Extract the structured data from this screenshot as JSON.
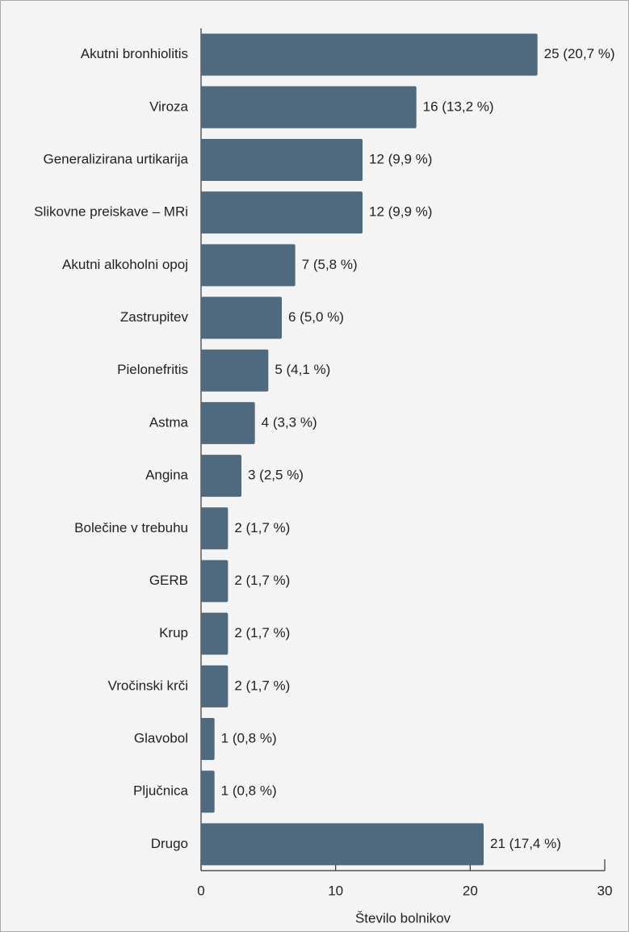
{
  "chart_data": {
    "type": "bar",
    "orientation": "horizontal",
    "categories": [
      "Akutni bronhiolitis",
      "Viroza",
      "Generalizirana urtikarija",
      "Slikovne preiskave – MRi",
      "Akutni alkoholni opoj",
      "Zastrupitev",
      "Pielonefritis",
      "Astma",
      "Angina",
      "Bolečine v trebuhu",
      "GERB",
      "Krup",
      "Vročinski krči",
      "Glavobol",
      "Pljučnica",
      "Drugo"
    ],
    "values": [
      25,
      16,
      12,
      12,
      7,
      6,
      5,
      4,
      3,
      2,
      2,
      2,
      2,
      1,
      1,
      21
    ],
    "value_labels": [
      "25 (20,7 %)",
      "16 (13,2 %)",
      "12 (9,9 %)",
      "12 (9,9 %)",
      "7 (5,8 %)",
      "6 (5,0 %)",
      "5 (4,1 %)",
      "4 (3,3 %)",
      "3 (2,5 %)",
      "2 (1,7 %)",
      "2 (1,7 %)",
      "2 (1,7 %)",
      "2 (1,7 %)",
      "1 (0,8 %)",
      "1 (0,8 %)",
      "21 (17,4 %)"
    ],
    "color": "#4f6a7e",
    "xlabel": "Število bolnikov",
    "xlim": [
      0,
      30
    ],
    "xticks": [
      0,
      10,
      20,
      30
    ]
  }
}
